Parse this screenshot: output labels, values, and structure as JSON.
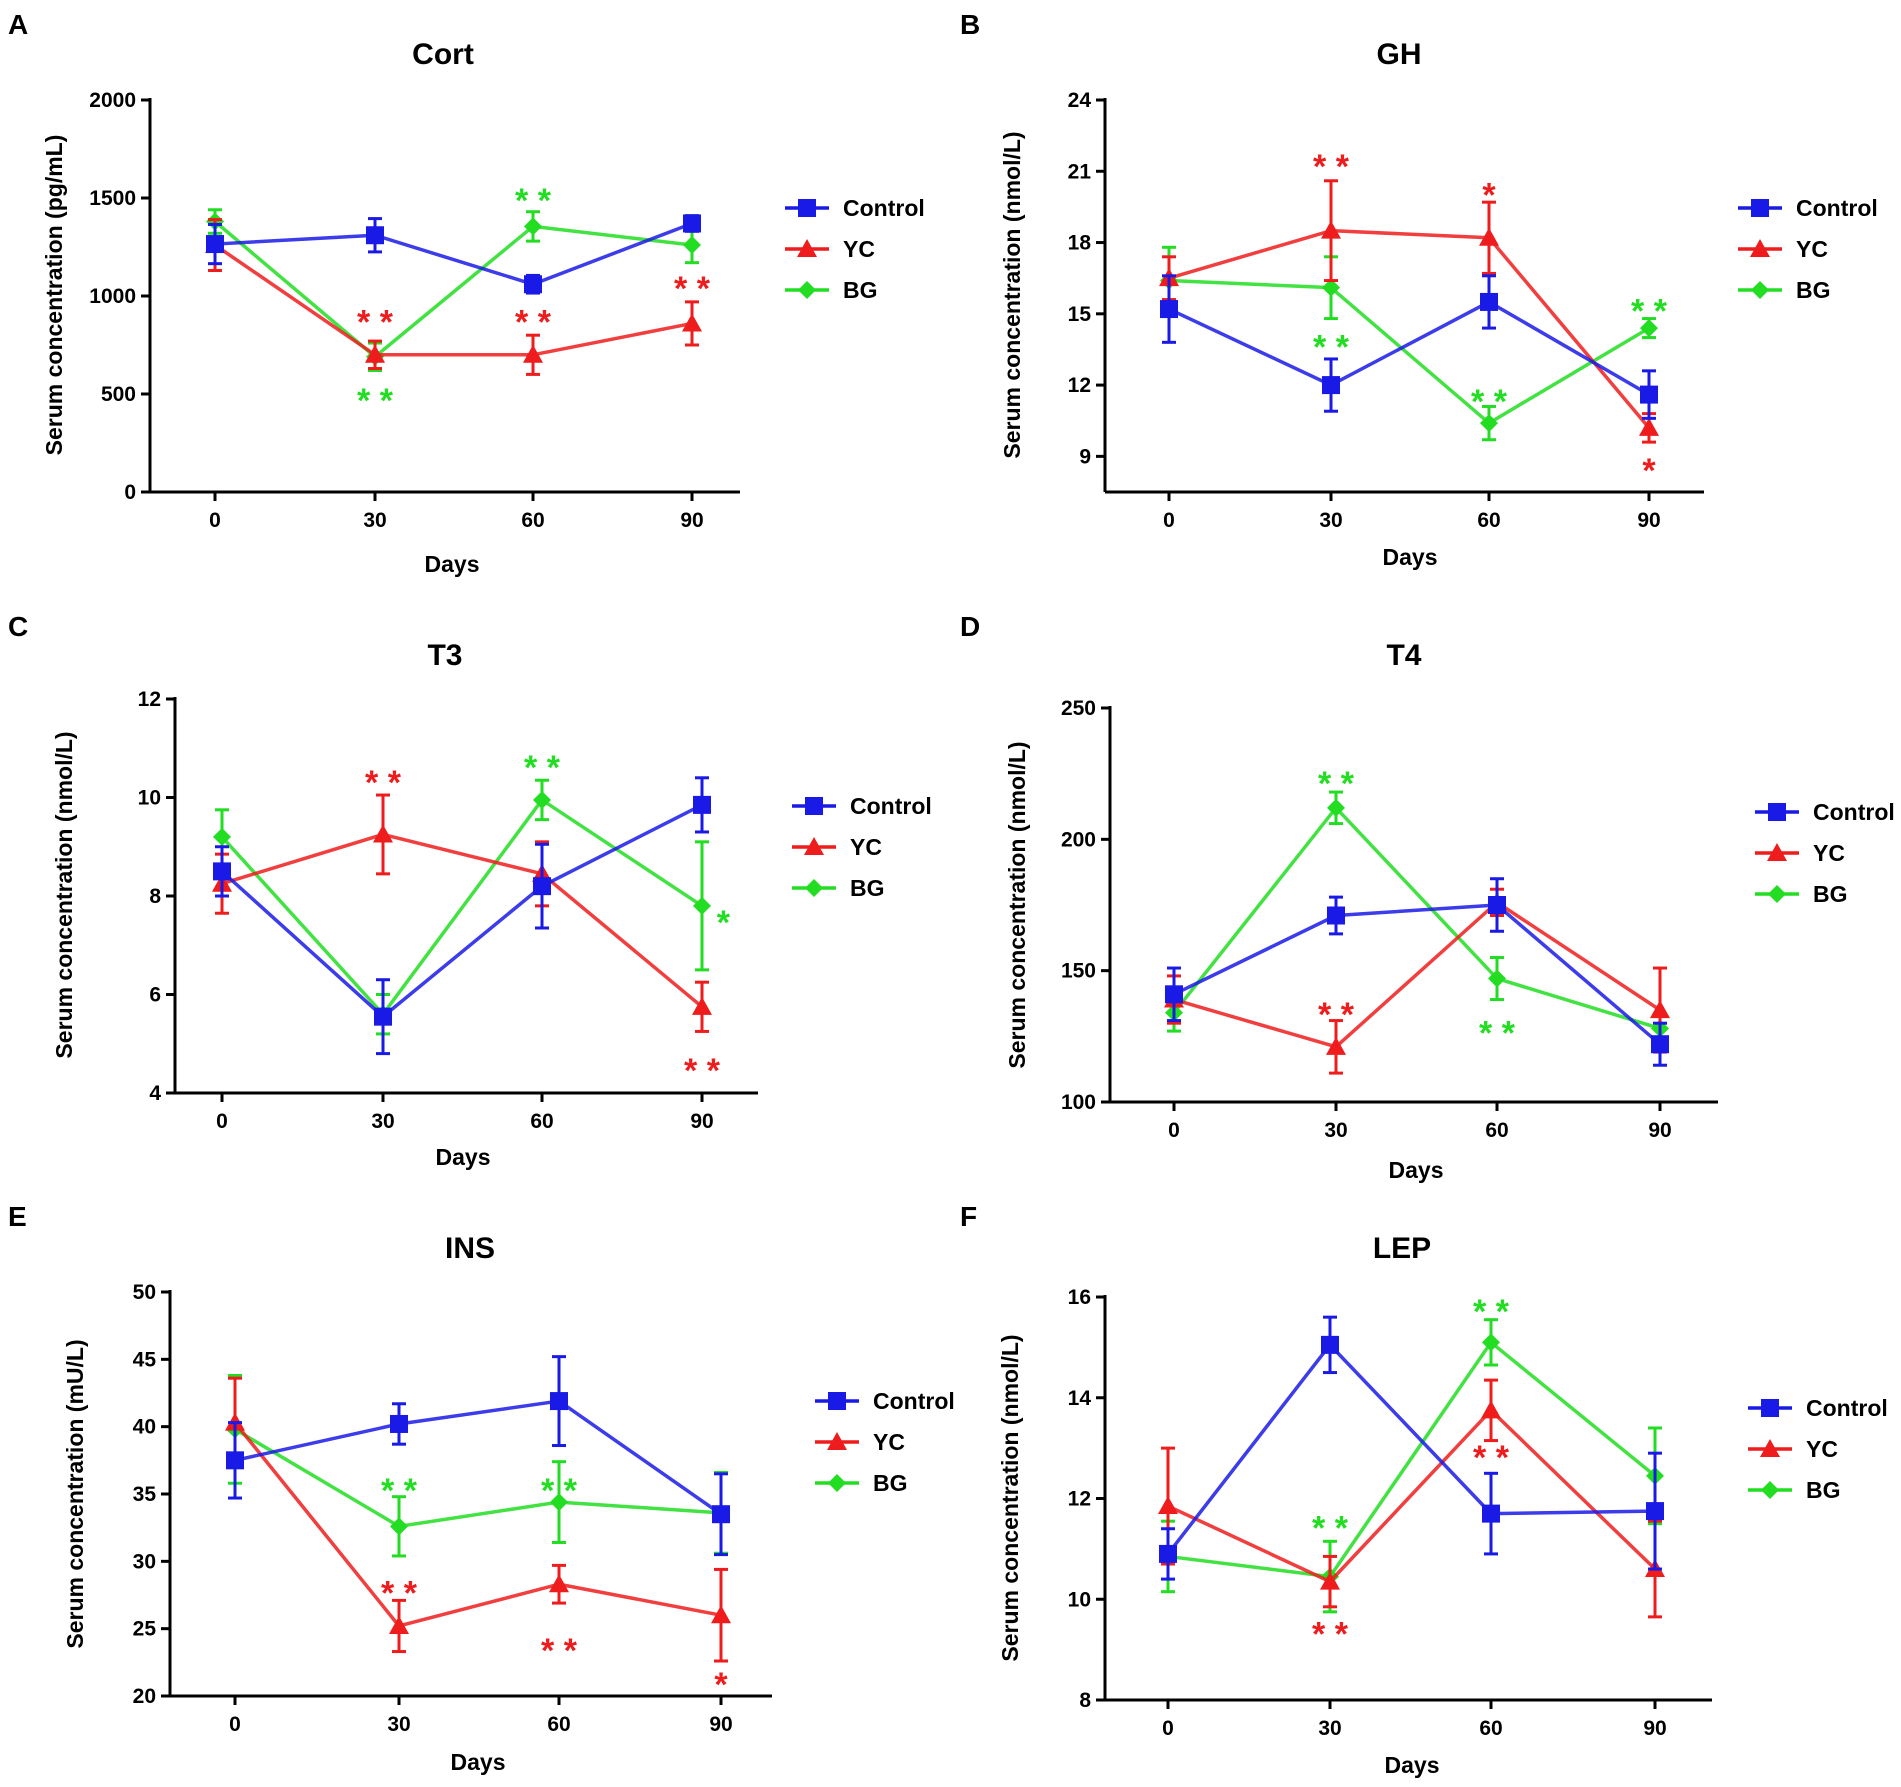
{
  "colors": {
    "Control": "#1a1ae6",
    "YC": "#ee1c1c",
    "BG": "#22dd22",
    "axis": "#000000"
  },
  "legend_labels": [
    "Control",
    "YC",
    "BG"
  ],
  "chart_data": [
    {
      "letter": "A",
      "type": "line",
      "title": "Cort",
      "xlabel": "Days",
      "ylabel": "Serum concentration (pg/mL)",
      "x": [
        0,
        30,
        60,
        90
      ],
      "xticks": [
        "0",
        "30",
        "60",
        "90"
      ],
      "ylim": [
        0,
        2000
      ],
      "yticks": [
        "0",
        "500",
        "1000",
        "1500",
        "2000"
      ],
      "series": [
        {
          "name": "Control",
          "values": [
            1265,
            1310,
            1060,
            1370
          ],
          "errors": [
            100,
            85,
            45,
            40
          ]
        },
        {
          "name": "YC",
          "values": [
            1260,
            700,
            700,
            860
          ],
          "errors": [
            130,
            70,
            100,
            110
          ]
        },
        {
          "name": "BG",
          "values": [
            1380,
            690,
            1355,
            1260
          ],
          "errors": [
            60,
            70,
            75,
            90
          ]
        }
      ],
      "annotations": [
        {
          "text": "* *",
          "x": 30,
          "y": 890,
          "series": "YC"
        },
        {
          "text": "* *",
          "x": 30,
          "y": 490,
          "series": "BG"
        },
        {
          "text": "* *",
          "x": 60,
          "y": 890,
          "series": "YC"
        },
        {
          "text": "* *",
          "x": 60,
          "y": 1510,
          "series": "BG"
        },
        {
          "text": "* *",
          "x": 90,
          "y": 1060,
          "series": "YC"
        }
      ]
    },
    {
      "letter": "B",
      "type": "line",
      "title": "GH",
      "xlabel": "Days",
      "ylabel": "Serum concentration (nmol/L)",
      "x": [
        0,
        30,
        60,
        90
      ],
      "xticks": [
        "0",
        "30",
        "60",
        "90"
      ],
      "ylim": [
        7.5,
        24
      ],
      "yticks": [
        "9",
        "12",
        "15",
        "18",
        "21",
        "24"
      ],
      "series": [
        {
          "name": "Control",
          "values": [
            15.2,
            12.0,
            15.5,
            11.6
          ],
          "errors": [
            1.4,
            1.1,
            1.1,
            1.0
          ]
        },
        {
          "name": "YC",
          "values": [
            16.5,
            18.5,
            18.2,
            10.2
          ],
          "errors": [
            0.9,
            2.1,
            1.5,
            0.6
          ]
        },
        {
          "name": "BG",
          "values": [
            16.4,
            16.1,
            10.4,
            14.4
          ],
          "errors": [
            1.4,
            1.3,
            0.7,
            0.4
          ]
        }
      ],
      "annotations": [
        {
          "text": "* *",
          "x": 30,
          "y": 21.4,
          "series": "YC"
        },
        {
          "text": "* *",
          "x": 30,
          "y": 13.8,
          "series": "BG"
        },
        {
          "text": "*",
          "x": 60,
          "y": 20.2,
          "series": "YC"
        },
        {
          "text": "* *",
          "x": 60,
          "y": 11.5,
          "series": "BG"
        },
        {
          "text": "* *",
          "x": 90,
          "y": 15.3,
          "series": "BG"
        },
        {
          "text": "*",
          "x": 90,
          "y": 8.6,
          "series": "YC"
        }
      ]
    },
    {
      "letter": "C",
      "type": "line",
      "title": "T3",
      "xlabel": "Days",
      "ylabel": "Serum concentration (nmol/L)",
      "x": [
        0,
        30,
        60,
        90
      ],
      "xticks": [
        "0",
        "30",
        "60",
        "90"
      ],
      "ylim": [
        4,
        12
      ],
      "yticks": [
        "4",
        "6",
        "8",
        "10",
        "12"
      ],
      "series": [
        {
          "name": "Control",
          "values": [
            8.5,
            5.55,
            8.2,
            9.85
          ],
          "errors": [
            0.5,
            0.75,
            0.85,
            0.55
          ]
        },
        {
          "name": "YC",
          "values": [
            8.25,
            9.25,
            8.45,
            5.75
          ],
          "errors": [
            0.6,
            0.8,
            0.65,
            0.5
          ]
        },
        {
          "name": "BG",
          "values": [
            9.2,
            5.6,
            9.95,
            7.8
          ],
          "errors": [
            0.55,
            0.4,
            0.4,
            1.3
          ]
        }
      ],
      "annotations": [
        {
          "text": "* *",
          "x": 30,
          "y": 10.4,
          "series": "YC"
        },
        {
          "text": "* *",
          "x": 60,
          "y": 10.7,
          "series": "BG"
        },
        {
          "text": "*",
          "x": 94,
          "y": 7.55,
          "series": "BG"
        },
        {
          "text": "* *",
          "x": 90,
          "y": 4.55,
          "series": "YC"
        }
      ]
    },
    {
      "letter": "D",
      "type": "line",
      "title": "T4",
      "xlabel": "Days",
      "ylabel": "Serum concentration (nmol/L)",
      "x": [
        0,
        30,
        60,
        90
      ],
      "xticks": [
        "0",
        "30",
        "60",
        "90"
      ],
      "ylim": [
        100,
        250
      ],
      "yticks": [
        "100",
        "150",
        "200",
        "250"
      ],
      "series": [
        {
          "name": "Control",
          "values": [
            141,
            171,
            175,
            122
          ],
          "errors": [
            10,
            7,
            10,
            8
          ]
        },
        {
          "name": "YC",
          "values": [
            139,
            121,
            176,
            135
          ],
          "errors": [
            9,
            10,
            5,
            16
          ]
        },
        {
          "name": "BG",
          "values": [
            134,
            212,
            147,
            128
          ],
          "errors": [
            7,
            6,
            8,
            5
          ]
        }
      ],
      "annotations": [
        {
          "text": "* *",
          "x": 30,
          "y": 223,
          "series": "BG"
        },
        {
          "text": "* *",
          "x": 30,
          "y": 135,
          "series": "YC"
        },
        {
          "text": "* *",
          "x": 60,
          "y": 128,
          "series": "BG"
        }
      ]
    },
    {
      "letter": "E",
      "type": "line",
      "title": "INS",
      "xlabel": "Days",
      "ylabel": "Serum concentration (mU/L)",
      "x": [
        0,
        30,
        60,
        90
      ],
      "xticks": [
        "0",
        "30",
        "60",
        "90"
      ],
      "ylim": [
        20,
        50
      ],
      "yticks": [
        "20",
        "25",
        "30",
        "35",
        "40",
        "45",
        "50"
      ],
      "series": [
        {
          "name": "Control",
          "values": [
            37.5,
            40.2,
            41.9,
            33.5
          ],
          "errors": [
            2.8,
            1.5,
            3.3,
            3.0
          ]
        },
        {
          "name": "YC",
          "values": [
            40.3,
            25.2,
            28.3,
            26.0
          ],
          "errors": [
            3.3,
            1.9,
            1.4,
            3.4
          ]
        },
        {
          "name": "BG",
          "values": [
            39.8,
            32.6,
            34.4,
            33.6
          ],
          "errors": [
            4.0,
            2.2,
            3.0,
            3.0
          ]
        }
      ],
      "annotations": [
        {
          "text": "* *",
          "x": 30,
          "y": 35.6,
          "series": "BG"
        },
        {
          "text": "* *",
          "x": 30,
          "y": 28.0,
          "series": "YC"
        },
        {
          "text": "* *",
          "x": 60,
          "y": 35.6,
          "series": "BG"
        },
        {
          "text": "* *",
          "x": 60,
          "y": 23.7,
          "series": "YC"
        },
        {
          "text": "*",
          "x": 90,
          "y": 21.2,
          "series": "YC"
        }
      ]
    },
    {
      "letter": "F",
      "type": "line",
      "title": "LEP",
      "xlabel": "Days",
      "ylabel": "Serum concentration (nmol/L)",
      "x": [
        0,
        30,
        60,
        90
      ],
      "xticks": [
        "0",
        "30",
        "60",
        "90"
      ],
      "ylim": [
        8,
        16
      ],
      "yticks": [
        "8",
        "10",
        "12",
        "14",
        "16"
      ],
      "series": [
        {
          "name": "Control",
          "values": [
            10.9,
            15.05,
            11.7,
            11.75
          ],
          "errors": [
            0.5,
            0.55,
            0.8,
            1.15
          ]
        },
        {
          "name": "YC",
          "values": [
            11.85,
            10.35,
            13.75,
            10.6
          ],
          "errors": [
            1.15,
            0.5,
            0.6,
            0.95
          ]
        },
        {
          "name": "BG",
          "values": [
            10.85,
            10.45,
            15.1,
            12.45
          ],
          "errors": [
            0.7,
            0.7,
            0.45,
            0.95
          ]
        }
      ],
      "annotations": [
        {
          "text": "* *",
          "x": 60,
          "y": 15.8,
          "series": "BG"
        },
        {
          "text": "* *",
          "x": 30,
          "y": 11.5,
          "series": "BG"
        },
        {
          "text": "* *",
          "x": 60,
          "y": 12.9,
          "series": "YC"
        },
        {
          "text": "* *",
          "x": 30,
          "y": 9.4,
          "series": "YC"
        }
      ]
    }
  ]
}
